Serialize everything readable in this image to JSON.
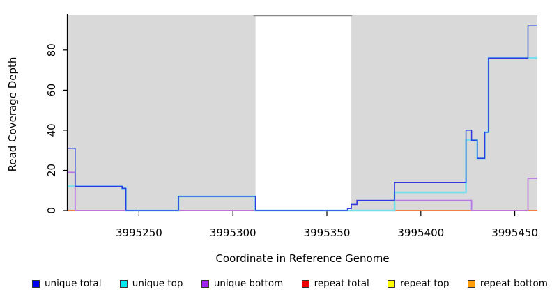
{
  "figure": {
    "background": "#ffffff",
    "plot_background": "#d9d9d9",
    "masked_band_color": "#ffffff",
    "masked_band_border_color": "#8a8a8a",
    "axis_color": "#000000"
  },
  "chart_data": {
    "type": "line",
    "subtype": "step-coverage",
    "title": "",
    "xlabel": "Coordinate in Reference Genome",
    "ylabel": "Read Coverage Depth",
    "x_range": [
      3995212,
      3995462
    ],
    "y_range": [
      0,
      97
    ],
    "x_ticks": [
      3995250,
      3995300,
      3995350,
      3995400,
      3995450
    ],
    "y_ticks": [
      0,
      20,
      40,
      60,
      80
    ],
    "grid": false,
    "legend_position": "bottom",
    "masked_region": [
      3995312,
      3995363
    ],
    "series": [
      {
        "name": "unique total",
        "color": "#0000ee",
        "line_color": "#2f3be0",
        "line_width": 1.5,
        "z": 6,
        "points": [
          [
            3995212,
            31
          ],
          [
            3995216,
            12
          ],
          [
            3995241,
            11
          ],
          [
            3995243,
            0
          ],
          [
            3995271,
            7
          ],
          [
            3995312,
            0
          ],
          [
            3995361,
            1
          ],
          [
            3995363,
            3
          ],
          [
            3995366,
            5
          ],
          [
            3995386,
            14
          ],
          [
            3995424,
            40
          ],
          [
            3995427,
            35
          ],
          [
            3995430,
            26
          ],
          [
            3995434,
            39
          ],
          [
            3995436,
            76
          ],
          [
            3995457,
            92
          ]
        ]
      },
      {
        "name": "unique top",
        "color": "#00e9f0",
        "line_color": "#76deec",
        "line_width": 2.6,
        "z": 5,
        "points": [
          [
            3995212,
            12
          ],
          [
            3995241,
            11
          ],
          [
            3995243,
            0
          ],
          [
            3995271,
            7
          ],
          [
            3995312,
            0
          ],
          [
            3995386,
            9
          ],
          [
            3995424,
            35
          ],
          [
            3995430,
            26
          ],
          [
            3995434,
            39
          ],
          [
            3995436,
            76
          ]
        ]
      },
      {
        "name": "unique bottom",
        "color": "#a122ef",
        "line_color": "#b777e3",
        "line_width": 1.8,
        "z": 4,
        "points": [
          [
            3995212,
            19
          ],
          [
            3995216,
            0
          ],
          [
            3995361,
            1
          ],
          [
            3995363,
            3
          ],
          [
            3995366,
            5
          ],
          [
            3995427,
            0
          ],
          [
            3995457,
            16
          ]
        ]
      },
      {
        "name": "repeat total",
        "color": "#ee0000",
        "line_color": "#e0506e",
        "line_width": 2.0,
        "z": 2,
        "points": [
          [
            3995212,
            0
          ]
        ]
      },
      {
        "name": "repeat top",
        "color": "#ffff00",
        "line_color": "#ffe800",
        "line_width": 1.0,
        "z": 1,
        "points": [
          [
            3995212,
            0
          ]
        ]
      },
      {
        "name": "repeat bottom",
        "color": "#ff9d0a",
        "line_color": "#ff9d2e",
        "line_width": 1.2,
        "z": 3,
        "points": [
          [
            3995212,
            0
          ]
        ]
      }
    ]
  }
}
